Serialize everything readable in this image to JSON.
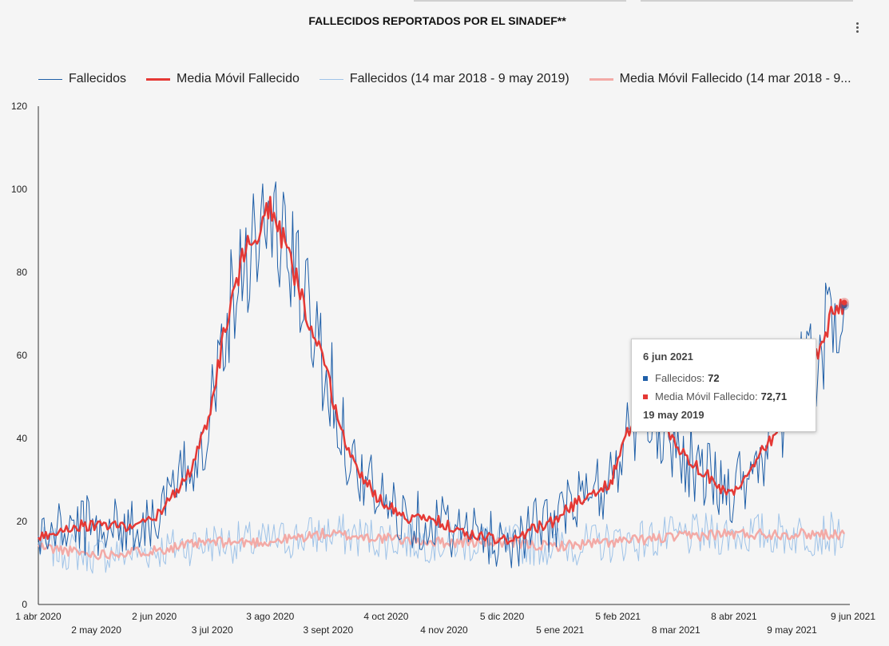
{
  "title": "FALLECIDOS REPORTADOS POR EL SINADEF**",
  "menu_icon": "more-vert-icon",
  "colors": {
    "fallecidos": "#1f5fa8",
    "media": "#e53935",
    "fallecidos_prev": "#9fc3e8",
    "media_prev": "#f3aaa6"
  },
  "legend": [
    "Fallecidos",
    "Media Móvil Fallecido",
    "Fallecidos (14 mar 2018 - 9 may 2019)",
    "Media Móvil Fallecido (14 mar 2018 - 9..."
  ],
  "tooltip": {
    "date": "6 jun 2021",
    "series1_label": "Fallecidos:",
    "series1_value": "72",
    "series2_label": "Media Móvil Fallecido:",
    "series2_value": "72,71",
    "compare_date": "19 may 2019"
  },
  "chart_data": {
    "type": "line",
    "x_range": [
      "2020-04-01",
      "2021-06-09"
    ],
    "ylim": [
      0,
      120
    ],
    "grid": false,
    "legend_position": "top",
    "y_ticks": [
      0,
      20,
      40,
      60,
      80,
      100,
      120
    ],
    "x_ticks_upper": [
      "1 abr 2020",
      "2 jun 2020",
      "3 ago 2020",
      "4 oct 2020",
      "5 dic 2020",
      "5 feb 2021",
      "8 abr 2021",
      "9 jun 2021"
    ],
    "x_ticks_lower": [
      "2 may 2020",
      "3 jul 2020",
      "3 sept 2020",
      "4 nov 2020",
      "5 ene 2021",
      "8 mar 2021",
      "9 may 2021"
    ],
    "series_keypoints": [
      {
        "name": "Fallecidos",
        "dates": [
          "2020-04-01",
          "2020-04-20",
          "2020-05-10",
          "2020-05-25",
          "2020-06-05",
          "2020-06-20",
          "2020-07-01",
          "2020-07-10",
          "2020-07-20",
          "2020-07-27",
          "2020-08-03",
          "2020-08-10",
          "2020-08-20",
          "2020-09-01",
          "2020-09-15",
          "2020-10-01",
          "2020-10-15",
          "2020-11-01",
          "2020-11-15",
          "2020-12-01",
          "2020-12-10",
          "2020-12-20",
          "2021-01-01",
          "2021-01-15",
          "2021-02-01",
          "2021-02-05",
          "2021-02-15",
          "2021-03-01",
          "2021-03-15",
          "2021-04-01",
          "2021-04-08",
          "2021-04-20",
          "2021-05-01",
          "2021-05-15",
          "2021-05-25",
          "2021-06-01",
          "2021-06-06"
        ],
        "values": [
          16,
          19,
          19,
          19,
          22,
          32,
          45,
          68,
          85,
          90,
          92,
          88,
          75,
          58,
          35,
          25,
          21,
          20,
          17,
          16,
          15,
          18,
          20,
          25,
          29,
          35,
          45,
          43,
          35,
          28,
          28,
          35,
          42,
          55,
          62,
          70,
          72
        ],
        "noise": 8
      },
      {
        "name": "Media Móvil Fallecido",
        "dates": [
          "2020-04-01",
          "2020-04-20",
          "2020-05-10",
          "2020-05-25",
          "2020-06-05",
          "2020-06-20",
          "2020-07-01",
          "2020-07-10",
          "2020-07-20",
          "2020-07-27",
          "2020-08-03",
          "2020-08-10",
          "2020-08-20",
          "2020-09-01",
          "2020-09-15",
          "2020-10-01",
          "2020-10-15",
          "2020-11-01",
          "2020-11-15",
          "2020-12-01",
          "2020-12-10",
          "2020-12-20",
          "2021-01-01",
          "2021-01-15",
          "2021-02-01",
          "2021-02-05",
          "2021-02-15",
          "2021-03-01",
          "2021-03-15",
          "2021-04-01",
          "2021-04-08",
          "2021-04-20",
          "2021-05-01",
          "2021-05-15",
          "2021-05-25",
          "2021-06-01",
          "2021-06-06"
        ],
        "values": [
          16,
          19,
          19,
          19,
          22,
          31,
          44,
          67,
          85,
          90,
          95,
          88,
          74,
          57,
          35,
          25,
          21,
          20,
          17,
          16,
          15,
          18,
          20,
          25,
          29,
          35,
          47,
          43,
          35,
          28,
          27,
          35,
          42,
          55,
          62,
          72,
          72.71
        ],
        "noise": 1.5
      },
      {
        "name": "Fallecidos (14 mar 2018 - 9 may 2019)",
        "dates": [
          "2020-04-01",
          "2020-05-01",
          "2020-06-01",
          "2020-07-01",
          "2020-08-01",
          "2020-09-01",
          "2020-10-01",
          "2020-11-01",
          "2020-12-01",
          "2021-01-01",
          "2021-02-01",
          "2021-03-01",
          "2021-04-01",
          "2021-05-01",
          "2021-06-06"
        ],
        "values": [
          14,
          12,
          13,
          15,
          15,
          17,
          16,
          15,
          15,
          14,
          15,
          16,
          17,
          17,
          17
        ],
        "noise": 6
      },
      {
        "name": "Media Móvil Fallecido (14 mar 2018 - 9 may 2019)",
        "dates": [
          "2020-04-01",
          "2020-05-01",
          "2020-06-01",
          "2020-07-01",
          "2020-08-01",
          "2020-09-01",
          "2020-10-01",
          "2020-11-01",
          "2020-12-01",
          "2021-01-01",
          "2021-02-01",
          "2021-03-01",
          "2021-04-01",
          "2021-05-01",
          "2021-06-06"
        ],
        "values": [
          14,
          12,
          13,
          15,
          15,
          17,
          16,
          15,
          15,
          14,
          15,
          16,
          17,
          17,
          17
        ],
        "noise": 1.5
      }
    ],
    "highlight": {
      "date": "2021-06-06",
      "fallecidos": 72,
      "media": 72.71
    }
  }
}
